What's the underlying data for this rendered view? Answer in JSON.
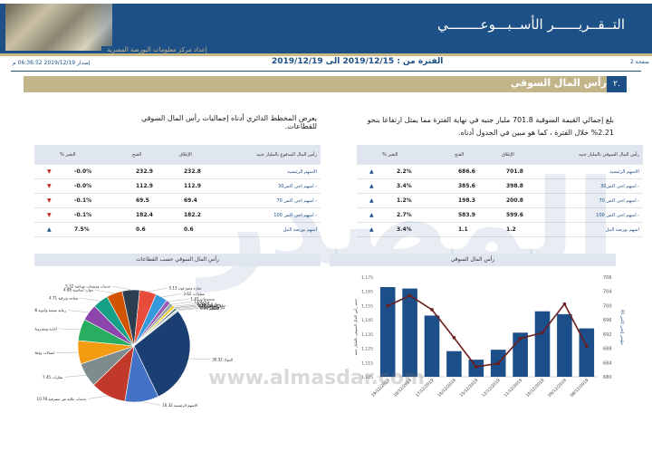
{
  "header": {
    "title": "التــقــريــــــر الأســبـــوعــــــــي",
    "subtitle": "إعداد مركز معلومات البورصة المصرية"
  },
  "info": {
    "page": "صفحة 2",
    "period": "الفترة من : 2019/12/15 الى 2019/12/19",
    "issued": "إصدار 2019/12/19 06:36:52 م"
  },
  "section": {
    "number": "٢.",
    "title": "رأس المال السوقي"
  },
  "paragraph_right": "بلغ إجمالي القيمة السوقية 701.8 مليار جنيه في نهاية الفترة مما يمثل ارتفاعا بنحو 2.21% خلال الفترة ، كما هو مبين في الجدول أدناه.",
  "paragraph_left": "يعرض المخطط الدائري أدناه إجماليات رأس المال السوقي للقطاعات.",
  "table_right": {
    "headers": [
      "رأس المال السوقي بالمليار جنيه",
      "الإغلاق",
      "الفتح",
      "% التغير"
    ],
    "rows": [
      {
        "name": "الاسهم الرئيسية",
        "close": "701.8",
        "open": "686.6",
        "change": "2.2%",
        "dir": "up"
      },
      {
        "name": "- اسهم اجي اكس30",
        "close": "398.8",
        "open": "385.6",
        "change": "3.4%",
        "dir": "up"
      },
      {
        "name": "- اسهم اجي اكس 70",
        "close": "200.8",
        "open": "198.3",
        "change": "1.2%",
        "dir": "up"
      },
      {
        "name": "- اسهم اجي اكس 100",
        "close": "599.6",
        "open": "583.9",
        "change": "2.7%",
        "dir": "up"
      },
      {
        "name": "اسهم بورصة النيل",
        "close": "1.2",
        "open": "1.1",
        "change": "3.4%",
        "dir": "up"
      }
    ]
  },
  "table_left": {
    "headers": [
      "رأس المال المدفوع بالمليار جنيه",
      "الإغلاق",
      "الفتح",
      "% التغير"
    ],
    "rows": [
      {
        "name": "الاسهم الرئيسية",
        "close": "232.8",
        "open": "232.9",
        "change": "-0.0%",
        "dir": "down"
      },
      {
        "name": "- اسهم اجي اكس30",
        "close": "112.9",
        "open": "112.9",
        "change": "-0.0%",
        "dir": "down"
      },
      {
        "name": "- اسهم اجي اكس 70",
        "close": "69.4",
        "open": "69.5",
        "change": "-0.1%",
        "dir": "down"
      },
      {
        "name": "- اسهم اجي اكس 100",
        "close": "182.2",
        "open": "182.4",
        "change": "-0.1%",
        "dir": "down"
      },
      {
        "name": "اسهم بورصة النيل",
        "close": "0.6",
        "open": "0.6",
        "change": "7.5%",
        "dir": "up"
      }
    ]
  },
  "chart_data": [
    {
      "type": "bar",
      "title": "رأس المال السوقي",
      "ylabel": "حجم رأس المال السوقي بالمليار جنيه",
      "y2label": "مؤشر إيجي إكس 30",
      "categories": [
        "19/12/2019",
        "18/12/2019",
        "17/12/2019",
        "16/12/2019",
        "15/12/2019",
        "12/12/2019",
        "11/12/2019",
        "10/12/2019",
        "09/12/2019",
        "08/12/2019"
      ],
      "series": [
        {
          "values": [
            1168,
            1167,
            1148,
            1123,
            1117,
            1124,
            1136,
            1151,
            1149,
            1139
          ]
        },
        {
          "values": [
            698.5,
            701.2,
            697.5,
            690.2,
            682.6,
            683.5,
            690.0,
            691.5,
            699.0,
            688.0
          ]
        }
      ],
      "y_ticks": [
        "1,175",
        "1,165",
        "1,155",
        "1,145",
        "1,135",
        "1,125",
        "1,115",
        "1,105"
      ],
      "y2_ticks": [
        "706",
        "704",
        "700",
        "696",
        "692",
        "688",
        "684",
        "680"
      ],
      "ylim": [
        1105,
        1175
      ],
      "y2lim": [
        680,
        706
      ],
      "bar_color": "#1c4e8a",
      "line_color": "#6b1d1d"
    },
    {
      "type": "pie",
      "title": "رأس المال السوقي حسب القطاعات",
      "labels": [
        "البنوك",
        "الاسهم الرئيسية",
        "خدمات مالية غير مصرفية",
        "عقارات",
        "اتصالات وإعلام",
        "أغذية ومشروبات",
        "رعاية صحية وأدوية",
        "سياحة وترفيه",
        "موارد أساسية",
        "خدمات ومنتجات صناعية",
        "تجارة وموزعون",
        "مقاولات",
        "منسوجات",
        "ورق",
        "مواد البناء",
        "سلع شخصية",
        "مرافق",
        "كيماويات",
        "غاز وبترول",
        "التعليم"
      ],
      "label_texts": [
        "30.32",
        "10.32",
        "10.78",
        "7.45",
        "7.19",
        "6.62",
        "5.06",
        "4.71",
        "4.88",
        "5.32",
        "5.13",
        "3.62",
        "1.41",
        "1.07",
        "0.75",
        "0.19",
        "0.12",
        "0.55",
        "0.24",
        "0.40"
      ],
      "values": [
        30.32,
        10.32,
        10.78,
        7.45,
        7.19,
        6.62,
        5.06,
        4.71,
        4.88,
        5.32,
        5.13,
        3.62,
        1.41,
        1.07,
        0.75,
        0.19,
        0.12,
        0.55,
        0.24,
        0.4
      ],
      "colors": [
        "#1b3f72",
        "#4472c4",
        "#c0392b",
        "#7f8c8d",
        "#f39c12",
        "#27ae60",
        "#8e44ad",
        "#16a085",
        "#d35400",
        "#2c3e50",
        "#e74c3c",
        "#3498db",
        "#9b59b6",
        "#95a5a6",
        "#f1c40f",
        "#1abc9c",
        "#e67e22",
        "#34495e",
        "#2ecc71",
        "#bdc3c7"
      ]
    }
  ],
  "watermark": {
    "text": "المصدر",
    "url": "www.almasdar.com"
  }
}
